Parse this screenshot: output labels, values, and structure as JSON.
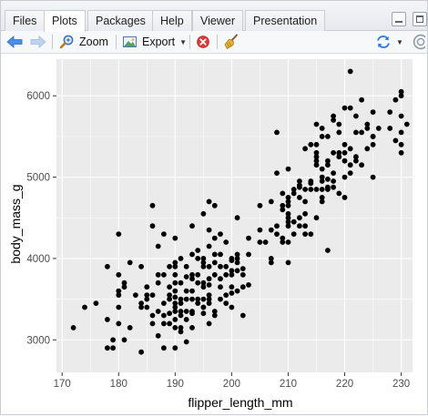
{
  "tabs": [
    {
      "label": "Files",
      "active": false
    },
    {
      "label": "Plots",
      "active": true
    },
    {
      "label": "Packages",
      "active": false
    },
    {
      "label": "Help",
      "active": false
    },
    {
      "label": "Viewer",
      "active": false
    },
    {
      "label": "Presentation",
      "active": false
    }
  ],
  "toolbar": {
    "zoom_label": "Zoom",
    "export_label": "Export"
  },
  "colors": {
    "panel_bg": "#ebebeb",
    "grid": "#ffffff",
    "point": "#000000",
    "arrow_blue": "#2a7ae2",
    "stop_red": "#e03a3a"
  },
  "chart_data": {
    "type": "scatter",
    "xlabel": "flipper_length_mm",
    "ylabel": "body_mass_g",
    "xlim": [
      169,
      232
    ],
    "ylim": [
      2600,
      6450
    ],
    "xticks": [
      170,
      180,
      190,
      200,
      210,
      220,
      230
    ],
    "yticks": [
      3000,
      4000,
      5000,
      6000
    ],
    "grid": true,
    "points": [
      [
        172,
        3150
      ],
      [
        174,
        3400
      ],
      [
        176,
        3450
      ],
      [
        178,
        3250
      ],
      [
        178,
        3900
      ],
      [
        178,
        2900
      ],
      [
        179,
        3000
      ],
      [
        179,
        2900
      ],
      [
        180,
        3800
      ],
      [
        180,
        3600
      ],
      [
        180,
        3550
      ],
      [
        180,
        3200
      ],
      [
        180,
        4300
      ],
      [
        180,
        3400
      ],
      [
        181,
        3700
      ],
      [
        181,
        3650
      ],
      [
        181,
        3000
      ],
      [
        182,
        3950
      ],
      [
        182,
        3150
      ],
      [
        183,
        3550
      ],
      [
        184,
        3450
      ],
      [
        184,
        3400
      ],
      [
        184,
        3900
      ],
      [
        184,
        2850
      ],
      [
        185,
        3500
      ],
      [
        185,
        3650
      ],
      [
        185,
        3550
      ],
      [
        185,
        3400
      ],
      [
        186,
        3300
      ],
      [
        186,
        3550
      ],
      [
        186,
        4400
      ],
      [
        186,
        4650
      ],
      [
        186,
        3200
      ],
      [
        187,
        3800
      ],
      [
        187,
        3700
      ],
      [
        187,
        3350
      ],
      [
        187,
        3050
      ],
      [
        187,
        4150
      ],
      [
        188,
        3800
      ],
      [
        188,
        3450
      ],
      [
        188,
        3300
      ],
      [
        188,
        3200
      ],
      [
        188,
        4300
      ],
      [
        188,
        2900
      ],
      [
        189,
        3500
      ],
      [
        189,
        3650
      ],
      [
        189,
        3200
      ],
      [
        189,
        3550
      ],
      [
        189,
        3325
      ],
      [
        189,
        3900
      ],
      [
        190,
        3400
      ],
      [
        190,
        3250
      ],
      [
        190,
        3700
      ],
      [
        190,
        3450
      ],
      [
        190,
        3900
      ],
      [
        190,
        3950
      ],
      [
        190,
        3600
      ],
      [
        190,
        3350
      ],
      [
        190,
        3525
      ],
      [
        190,
        3800
      ],
      [
        190,
        2900
      ],
      [
        190,
        3150
      ],
      [
        190,
        4250
      ],
      [
        191,
        3150
      ],
      [
        191,
        3500
      ],
      [
        191,
        3700
      ],
      [
        191,
        3300
      ],
      [
        191,
        4000
      ],
      [
        191,
        3450
      ],
      [
        191,
        3100
      ],
      [
        191,
        3350
      ],
      [
        192,
        3775
      ],
      [
        192,
        3600
      ],
      [
        192,
        3500
      ],
      [
        192,
        3250
      ],
      [
        192,
        2975
      ],
      [
        192,
        3900
      ],
      [
        192,
        3350
      ],
      [
        193,
        3750
      ],
      [
        193,
        3350
      ],
      [
        193,
        3600
      ],
      [
        193,
        3800
      ],
      [
        193,
        3150
      ],
      [
        193,
        4050
      ],
      [
        193,
        3500
      ],
      [
        193,
        4400
      ],
      [
        193,
        3325
      ],
      [
        194,
        3700
      ],
      [
        194,
        3800
      ],
      [
        194,
        3450
      ],
      [
        194,
        3500
      ],
      [
        194,
        4000
      ],
      [
        194,
        4100
      ],
      [
        195,
        3500
      ],
      [
        195,
        3400
      ],
      [
        195,
        3950
      ],
      [
        195,
        3325
      ],
      [
        195,
        3700
      ],
      [
        195,
        4000
      ],
      [
        195,
        3900
      ],
      [
        195,
        4550
      ],
      [
        195,
        3400
      ],
      [
        195,
        3650
      ],
      [
        196,
        3900
      ],
      [
        196,
        3750
      ],
      [
        196,
        3550
      ],
      [
        196,
        3500
      ],
      [
        196,
        3675
      ],
      [
        196,
        4150
      ],
      [
        196,
        4350
      ],
      [
        196,
        3450
      ],
      [
        196,
        4700
      ],
      [
        196,
        3200
      ],
      [
        197,
        3350
      ],
      [
        197,
        4650
      ],
      [
        197,
        3950
      ],
      [
        197,
        4050
      ],
      [
        197,
        3300
      ],
      [
        197,
        4250
      ],
      [
        197,
        3800
      ],
      [
        198,
        3650
      ],
      [
        198,
        3900
      ],
      [
        198,
        4300
      ],
      [
        198,
        3750
      ],
      [
        198,
        3500
      ],
      [
        198,
        4050
      ],
      [
        199,
        3450
      ],
      [
        199,
        3800
      ],
      [
        199,
        4200
      ],
      [
        199,
        3550
      ],
      [
        199,
        3900
      ],
      [
        200,
        3975
      ],
      [
        200,
        3400
      ],
      [
        200,
        3850
      ],
      [
        200,
        3800
      ],
      [
        200,
        4000
      ],
      [
        200,
        3650
      ],
      [
        200,
        3575
      ],
      [
        201,
        3600
      ],
      [
        201,
        4000
      ],
      [
        201,
        3850
      ],
      [
        201,
        3950
      ],
      [
        201,
        4050
      ],
      [
        201,
        4500
      ],
      [
        202,
        3800
      ],
      [
        202,
        3650
      ],
      [
        202,
        3875
      ],
      [
        202,
        3300
      ],
      [
        203,
        4050
      ],
      [
        203,
        4250
      ],
      [
        203,
        3675
      ],
      [
        205,
        4200
      ],
      [
        205,
        4650
      ],
      [
        205,
        4350
      ],
      [
        206,
        4200
      ],
      [
        207,
        4000
      ],
      [
        207,
        3950
      ],
      [
        207,
        4350
      ],
      [
        207,
        4700
      ],
      [
        208,
        4400
      ],
      [
        208,
        4300
      ],
      [
        208,
        5050
      ],
      [
        208,
        5550
      ],
      [
        209,
        4650
      ],
      [
        209,
        4200
      ],
      [
        209,
        4600
      ],
      [
        209,
        4800
      ],
      [
        209,
        4250
      ],
      [
        210,
        4500
      ],
      [
        210,
        4400
      ],
      [
        210,
        4700
      ],
      [
        210,
        4750
      ],
      [
        210,
        4650
      ],
      [
        210,
        5100
      ],
      [
        210,
        4200
      ],
      [
        210,
        4450
      ],
      [
        210,
        3950
      ],
      [
        210,
        4550
      ],
      [
        211,
        4800
      ],
      [
        211,
        4850
      ],
      [
        211,
        4300
      ],
      [
        211,
        4450
      ],
      [
        212,
        4900
      ],
      [
        212,
        4500
      ],
      [
        212,
        4750
      ],
      [
        212,
        4400
      ],
      [
        212,
        4950
      ],
      [
        212,
        4875
      ],
      [
        213,
        4550
      ],
      [
        213,
        4700
      ],
      [
        213,
        5350
      ],
      [
        213,
        4850
      ],
      [
        213,
        4300
      ],
      [
        213,
        4400
      ],
      [
        214,
        4925
      ],
      [
        214,
        5400
      ],
      [
        214,
        4850
      ],
      [
        214,
        4300
      ],
      [
        214,
        4950
      ],
      [
        215,
        4500
      ],
      [
        215,
        5150
      ],
      [
        215,
        5650
      ],
      [
        215,
        5250
      ],
      [
        215,
        5300
      ],
      [
        215,
        5400
      ],
      [
        215,
        4850
      ],
      [
        215,
        5200
      ],
      [
        216,
        4750
      ],
      [
        216,
        5100
      ],
      [
        216,
        4850
      ],
      [
        216,
        5500
      ],
      [
        216,
        4700
      ],
      [
        216,
        5000
      ],
      [
        216,
        5600
      ],
      [
        216,
        4950
      ],
      [
        217,
        4850
      ],
      [
        217,
        4875
      ],
      [
        217,
        5200
      ],
      [
        217,
        4975
      ],
      [
        217,
        5500
      ],
      [
        217,
        4100
      ],
      [
        217,
        5150
      ],
      [
        218,
        5700
      ],
      [
        218,
        5300
      ],
      [
        218,
        4950
      ],
      [
        218,
        5050
      ],
      [
        218,
        5750
      ],
      [
        218,
        4875
      ],
      [
        219,
        5650
      ],
      [
        219,
        5300
      ],
      [
        219,
        4800
      ],
      [
        219,
        5250
      ],
      [
        219,
        5550
      ],
      [
        220,
        5400
      ],
      [
        220,
        4750
      ],
      [
        220,
        5200
      ],
      [
        220,
        5000
      ],
      [
        220,
        5300
      ],
      [
        220,
        5850
      ],
      [
        221,
        5850
      ],
      [
        221,
        6300
      ],
      [
        221,
        5150
      ],
      [
        221,
        5350
      ],
      [
        221,
        5050
      ],
      [
        222,
        5250
      ],
      [
        222,
        5550
      ],
      [
        222,
        5200
      ],
      [
        222,
        5750
      ],
      [
        223,
        5550
      ],
      [
        223,
        5150
      ],
      [
        223,
        5950
      ],
      [
        224,
        5600
      ],
      [
        224,
        5650
      ],
      [
        224,
        5350
      ],
      [
        225,
        5000
      ],
      [
        225,
        5500
      ],
      [
        225,
        5800
      ],
      [
        225,
        5400
      ],
      [
        225,
        5500
      ],
      [
        226,
        5600
      ],
      [
        228,
        5600
      ],
      [
        228,
        5800
      ],
      [
        229,
        5950
      ],
      [
        229,
        5450
      ],
      [
        230,
        5750
      ],
      [
        230,
        6000
      ],
      [
        230,
        5550
      ],
      [
        230,
        5300
      ],
      [
        230,
        5400
      ],
      [
        230,
        6050
      ],
      [
        231,
        5650
      ]
    ]
  }
}
